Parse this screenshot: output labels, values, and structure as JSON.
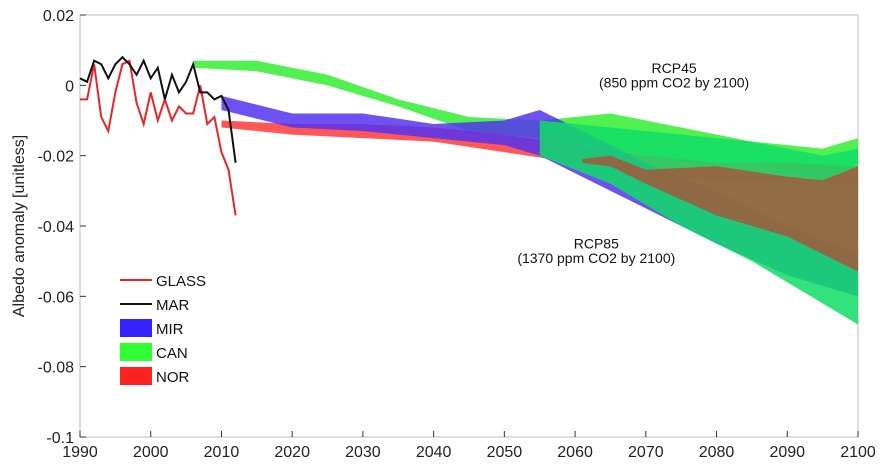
{
  "chart_data": {
    "type": "area",
    "title": "",
    "xlabel": "",
    "ylabel": "Albedo anomaly [unitless]",
    "xlim": [
      1990,
      2100
    ],
    "ylim": [
      -0.1,
      0.02
    ],
    "xticks": [
      1990,
      2000,
      2010,
      2020,
      2030,
      2040,
      2050,
      2060,
      2070,
      2080,
      2090,
      2100
    ],
    "yticks": [
      {
        "value": 0.02,
        "label": "0.02"
      },
      {
        "value": 0,
        "label": "0"
      },
      {
        "value": -0.02,
        "label": "-0.02"
      },
      {
        "value": -0.04,
        "label": "-0.04"
      },
      {
        "value": -0.06,
        "label": "-0.06"
      },
      {
        "value": -0.08,
        "label": "-0.08"
      },
      {
        "value": -0.1,
        "label": "-0.1"
      }
    ],
    "grid": false,
    "legend": "lower-left",
    "annotations": [
      {
        "text": "RCP45",
        "x": 2074,
        "y": 0.0035
      },
      {
        "text": "(850 ppm CO2 by 2100)",
        "x": 2074,
        "y": -0.0006
      },
      {
        "text": "RCP85",
        "x": 2063,
        "y": -0.0464
      },
      {
        "text": "(1370 ppm CO2 by 2100)",
        "x": 2063,
        "y": -0.0505
      }
    ],
    "lines": [
      {
        "name": "GLASS",
        "color": "#e8262a",
        "x": [
          1990,
          1991,
          1992,
          1993,
          1994,
          1995,
          1996,
          1997,
          1998,
          1999,
          2000,
          2001,
          2002,
          2003,
          2004,
          2005,
          2006,
          2007,
          2008,
          2009,
          2010,
          2011,
          2012
        ],
        "y": [
          -0.004,
          -0.004,
          0.006,
          -0.009,
          -0.013,
          -0.002,
          0.006,
          0.007,
          -0.005,
          -0.011,
          -0.002,
          -0.01,
          -0.004,
          -0.01,
          -0.006,
          -0.008,
          -0.008,
          0.0,
          -0.011,
          -0.009,
          -0.019,
          -0.024,
          -0.037
        ]
      },
      {
        "name": "MAR",
        "color": "#111111",
        "x": [
          1990,
          1991,
          1992,
          1993,
          1994,
          1995,
          1996,
          1997,
          1998,
          1999,
          2000,
          2001,
          2002,
          2003,
          2004,
          2005,
          2006,
          2007,
          2008,
          2009,
          2010,
          2011,
          2012
        ],
        "y": [
          0.002,
          0.001,
          0.007,
          0.006,
          0.002,
          0.006,
          0.008,
          0.006,
          0.003,
          0.007,
          0.002,
          0.005,
          -0.004,
          0.003,
          -0.002,
          0.001,
          0.006,
          -0.002,
          -0.002,
          -0.004,
          -0.003,
          -0.007,
          -0.022
        ]
      }
    ],
    "bands": [
      {
        "name": "CAN",
        "scenario": "RCP45",
        "color": "#33ee33",
        "x": [
          2006,
          2015,
          2025,
          2035,
          2045,
          2055,
          2065,
          2075,
          2085,
          2095,
          2100
        ],
        "upper": [
          0.007,
          0.007,
          0.003,
          -0.004,
          -0.009,
          -0.01,
          -0.008,
          -0.012,
          -0.016,
          -0.018,
          -0.015
        ],
        "lower": [
          0.005,
          0.004,
          0.0,
          -0.006,
          -0.013,
          -0.015,
          -0.018,
          -0.022,
          -0.022,
          -0.027,
          -0.022
        ]
      },
      {
        "name": "NOR",
        "scenario": "RCP45",
        "color": "#ff3a3a",
        "x": [
          2010,
          2020,
          2030,
          2040,
          2050,
          2060,
          2070,
          2080,
          2090,
          2100
        ],
        "upper": [
          -0.01,
          -0.011,
          -0.011,
          -0.012,
          -0.014,
          -0.017,
          -0.02,
          -0.022,
          -0.022,
          -0.023
        ],
        "lower": [
          -0.012,
          -0.014,
          -0.015,
          -0.016,
          -0.019,
          -0.022,
          -0.025,
          -0.027,
          -0.027,
          -0.028
        ]
      },
      {
        "name": "MIR",
        "scenario": "RCP85",
        "color": "#5533ee",
        "x": [
          2010,
          2020,
          2030,
          2040,
          2050,
          2055,
          2060,
          2070,
          2080,
          2090,
          2100
        ],
        "upper": [
          -0.003,
          -0.008,
          -0.008,
          -0.011,
          -0.01,
          -0.007,
          -0.012,
          -0.022,
          -0.03,
          -0.04,
          -0.048
        ],
        "lower": [
          -0.007,
          -0.012,
          -0.013,
          -0.015,
          -0.017,
          -0.02,
          -0.025,
          -0.035,
          -0.045,
          -0.054,
          -0.06
        ]
      },
      {
        "name": "CAN",
        "scenario": "RCP85",
        "color": "#11dd66",
        "x": [
          2055,
          2065,
          2075,
          2085,
          2095,
          2100
        ],
        "upper": [
          -0.01,
          -0.012,
          -0.014,
          -0.016,
          -0.02,
          -0.018
        ],
        "lower": [
          -0.02,
          -0.028,
          -0.04,
          -0.05,
          -0.062,
          -0.068
        ]
      },
      {
        "name": "NOR",
        "scenario": "RCP85",
        "color": "#a3583a",
        "x": [
          2061,
          2065,
          2070,
          2080,
          2090,
          2095,
          2100
        ],
        "upper": [
          -0.021,
          -0.02,
          -0.024,
          -0.023,
          -0.026,
          -0.027,
          -0.023
        ],
        "lower": [
          -0.022,
          -0.023,
          -0.028,
          -0.037,
          -0.043,
          -0.048,
          -0.053
        ]
      }
    ],
    "legend_entries": [
      {
        "label": "GLASS",
        "kind": "line",
        "color": "#e8262a"
      },
      {
        "label": "MAR",
        "kind": "line",
        "color": "#111111"
      },
      {
        "label": "MIR",
        "kind": "patch",
        "color": "#3322ff"
      },
      {
        "label": "CAN",
        "kind": "patch",
        "color": "#33ff33"
      },
      {
        "label": "NOR",
        "kind": "patch",
        "color": "#ff2222"
      }
    ]
  }
}
